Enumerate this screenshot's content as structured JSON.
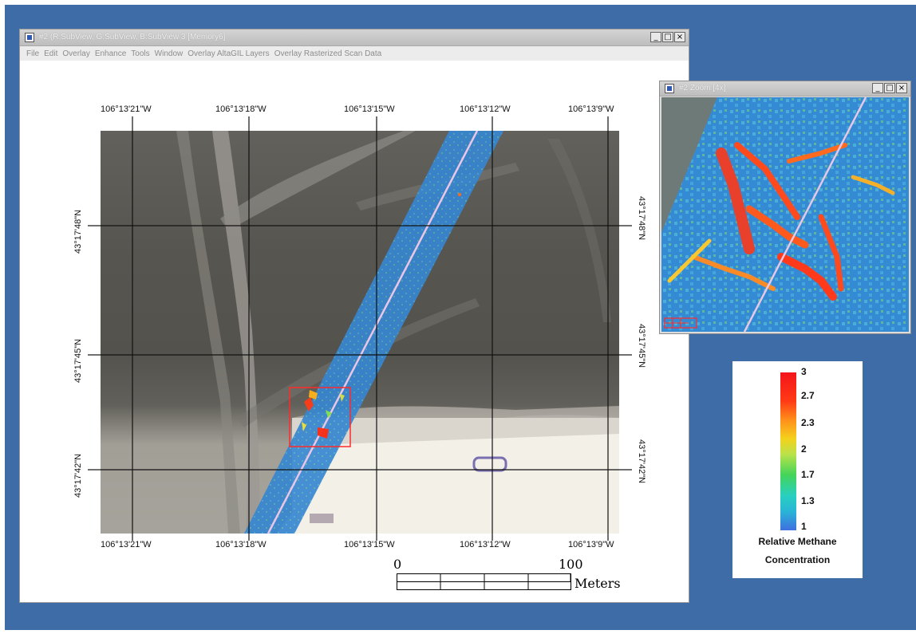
{
  "main_window": {
    "title": "#2 (R:SubView, G:SubView, B:SubView 3 [Memory6]",
    "menu": [
      "File",
      "Edit",
      "Overlay",
      "Enhance",
      "Tools",
      "Window",
      "Overlay AltaGIL Layers",
      "Overlay Rasterized Scan Data"
    ],
    "controls": {
      "minimize": "_",
      "maximize": "□",
      "close": "×"
    }
  },
  "map": {
    "top_longitudes": [
      "106°13'21\"W",
      "106°13'18\"W",
      "106°13'15\"W",
      "106°13'12\"W",
      "106°13'9\"W"
    ],
    "bottom_longitudes": [
      "106°13'21\"W",
      "106°13'18\"W",
      "106°13'15\"W",
      "106°13'12\"W",
      "106°13'9\"W"
    ],
    "left_latitudes": [
      "43°17'48\"N",
      "43°17'45\"N",
      "43°17'42\"N"
    ],
    "right_latitudes": [
      "43°17'48\"N",
      "43°17'45\"N",
      "43°17'42\"N"
    ],
    "scale": {
      "start": "0",
      "end": "100",
      "unit": "Meters"
    }
  },
  "zoom_window": {
    "title": "#2 Zoom [4x]",
    "controls": {
      "minimize": "_",
      "maximize": "□",
      "close": "×"
    }
  },
  "legend": {
    "ticks": [
      "3",
      "2.7",
      "2.3",
      "2",
      "1.7",
      "1.3",
      "1"
    ],
    "title_line1": "Relative Methane",
    "title_line2": "Concentration",
    "colors": {
      "high": "#f4141b",
      "mid": "#f4d21d",
      "low": "#3f6fe0"
    }
  }
}
